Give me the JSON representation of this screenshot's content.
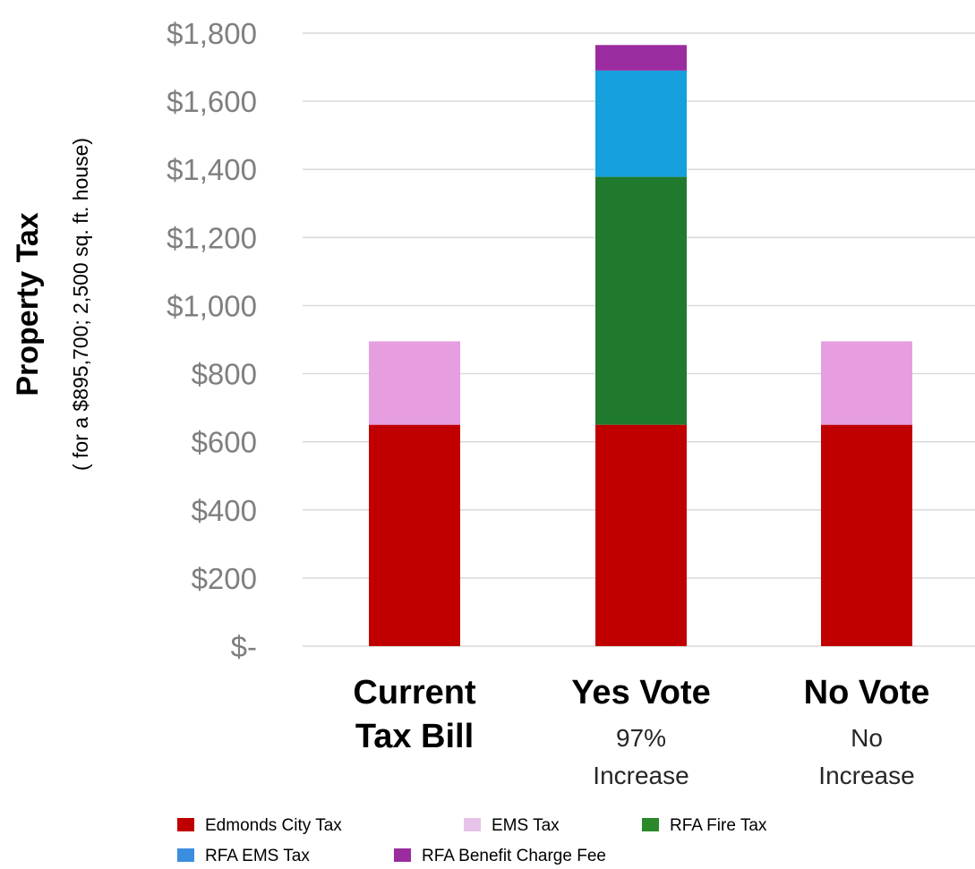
{
  "chart_data": {
    "type": "bar",
    "stacked": true,
    "ylabel": "Property Tax",
    "ylabel_sub": "( for a $895,700; 2,500 sq. ft. house)",
    "ylim": [
      0,
      1800
    ],
    "y_ticks": [
      0,
      200,
      400,
      600,
      800,
      1000,
      1200,
      1400,
      1600,
      1800
    ],
    "y_tick_labels": [
      "$-",
      "$200",
      "$400",
      "$600",
      "$800",
      "$1,000",
      "$1,200",
      "$1,400",
      "$1,600",
      "$1,800"
    ],
    "grid": true,
    "legend_position": "bottom",
    "categories": [
      {
        "title_lines": [
          "Current",
          "Tax Bill"
        ],
        "sub_lines": []
      },
      {
        "title_lines": [
          "Yes Vote"
        ],
        "sub_lines": [
          "97%",
          "Increase"
        ]
      },
      {
        "title_lines": [
          "No Vote"
        ],
        "sub_lines": [
          "No",
          "Increase"
        ]
      }
    ],
    "series": [
      {
        "name": "Edmonds City Tax",
        "color": "#c00000",
        "values": [
          650,
          650,
          650
        ]
      },
      {
        "name": "EMS Tax",
        "color": "#e69ee0",
        "values": [
          245,
          0,
          245
        ]
      },
      {
        "name": "RFA Fire Tax",
        "color": "#1f7a2e",
        "values": [
          0,
          728,
          0
        ]
      },
      {
        "name": "RFA EMS Tax",
        "color": "#159fdb",
        "values": [
          0,
          312,
          0
        ]
      },
      {
        "name": "RFA Benefit Charge Fee",
        "color": "#9b2ca0",
        "values": [
          0,
          75,
          0
        ]
      }
    ],
    "legend_rows": [
      [
        "Edmonds City Tax",
        "EMS Tax",
        "RFA Fire Tax"
      ],
      [
        "RFA EMS Tax",
        "RFA Benefit Charge Fee"
      ]
    ],
    "legend_colors": {
      "Edmonds City Tax": "#c00000",
      "EMS Tax": "#e7c3ea",
      "RFA Fire Tax": "#2a8a2a",
      "RFA EMS Tax": "#3a8ee0",
      "RFA Benefit Charge Fee": "#9b2ca0"
    },
    "grid_color": "#d9d9d9"
  }
}
